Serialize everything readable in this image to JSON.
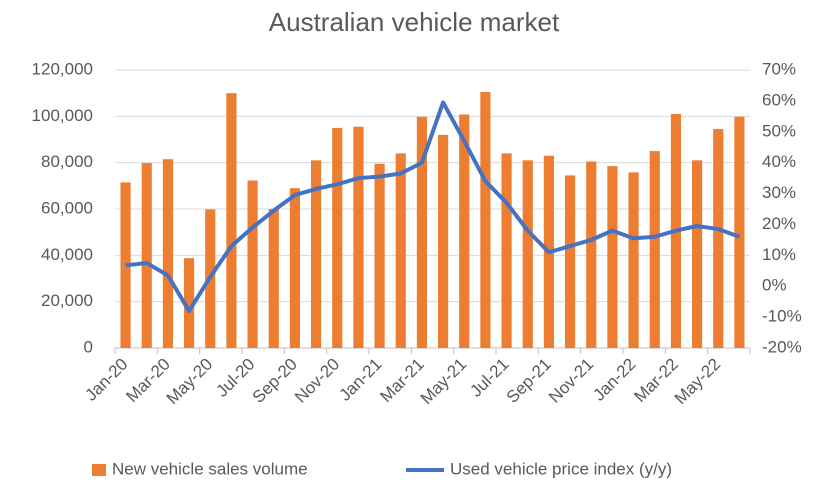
{
  "chart_data": {
    "type": "bar_line",
    "title": "Australian vehicle market",
    "categories": [
      "Jan-20",
      null,
      "Mar-20",
      null,
      "May-20",
      null,
      "Jul-20",
      null,
      "Sep-20",
      null,
      "Nov-20",
      null,
      "Jan-21",
      null,
      "Mar-21",
      null,
      "May-21",
      null,
      "Jul-21",
      null,
      "Sep-21",
      null,
      "Nov-21",
      null,
      "Jan-22",
      null,
      "Mar-22",
      null,
      "May-22",
      null
    ],
    "series": [
      {
        "name": "New vehicle sales volume",
        "type": "bar",
        "color": "#ED7D31",
        "values": [
          71500,
          79800,
          81500,
          38800,
          59800,
          110000,
          72300,
          60000,
          69000,
          81000,
          95000,
          95500,
          79500,
          84000,
          99800,
          92000,
          100800,
          110500,
          84000,
          81000,
          83000,
          74500,
          80500,
          78500,
          75800,
          85000,
          101000,
          81000,
          94500,
          99800
        ]
      },
      {
        "name": "Used vehicle price index (y/y)",
        "type": "line",
        "axis": "y2",
        "color": "#4472C4",
        "values": [
          6.8,
          7.5,
          3.5,
          -8,
          3,
          13,
          19,
          24.5,
          29.5,
          31.5,
          33,
          35,
          35.5,
          36.5,
          40,
          59.5,
          47,
          34,
          27,
          18,
          11,
          13,
          15,
          18,
          15.5,
          16,
          18,
          19.5,
          18.5,
          16
        ]
      }
    ],
    "ylim": [
      0,
      120000
    ],
    "yticks": [
      0,
      {
        "value": 20000,
        "label": "20,000"
      },
      {
        "value": 40000,
        "label": "40,000"
      },
      {
        "value": 60000,
        "label": "60,000"
      },
      {
        "value": 80000,
        "label": "80,000"
      },
      {
        "value": 100000,
        "label": "100,000"
      },
      {
        "value": 120000,
        "label": "120,000"
      }
    ],
    "y2lim": [
      -20,
      70
    ],
    "y2ticks": [
      {
        "value": -20,
        "label": "-20%"
      },
      {
        "value": -10,
        "label": "-10%"
      },
      {
        "value": 0,
        "label": "0%"
      },
      {
        "value": 10,
        "label": "10%"
      },
      {
        "value": 20,
        "label": "20%"
      },
      {
        "value": 30,
        "label": "30%"
      },
      {
        "value": 40,
        "label": "40%"
      },
      {
        "value": 50,
        "label": "50%"
      },
      {
        "value": 60,
        "label": "60%"
      },
      {
        "value": 70,
        "label": "70%"
      }
    ],
    "grid": true,
    "legend": "bottom"
  }
}
